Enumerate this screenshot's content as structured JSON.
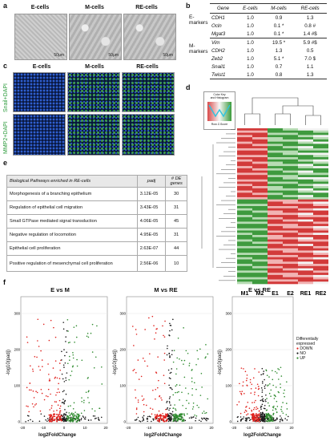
{
  "panels": {
    "a": {
      "label": "a",
      "captions": [
        "E-cells",
        "M-cells",
        "RE-cells"
      ],
      "scalebars": [
        "50μm",
        "50μm",
        "50μm"
      ]
    },
    "b": {
      "label": "b",
      "headers": [
        "Gene",
        "E-cells",
        "M-cells",
        "RE-cells"
      ],
      "groups": [
        {
          "name": "E-\nmarkers",
          "rows": [
            {
              "gene": "CDH1",
              "e": "1.0",
              "m": "0.9",
              "re": "1.3"
            },
            {
              "gene": "Ocln",
              "e": "1.0",
              "m": "0.1 *",
              "re": "0.8 #"
            },
            {
              "gene": "Mgat3",
              "e": "1.0",
              "m": "0.1 *",
              "re": "1.4 #$"
            }
          ]
        },
        {
          "name": "M-\nmarkers",
          "rows": [
            {
              "gene": "Vim",
              "e": "1.0",
              "m": "19.5 *",
              "re": "5.9 #$"
            },
            {
              "gene": "CDH2",
              "e": "1.0",
              "m": "1.3",
              "re": "0.5"
            },
            {
              "gene": "Zeb2",
              "e": "1.0",
              "m": "5.1 *",
              "re": "7.0 $"
            },
            {
              "gene": "Snail1",
              "e": "1.0",
              "m": "0.7",
              "re": "1.1"
            },
            {
              "gene": "Twist1",
              "e": "1.0",
              "m": "0.8",
              "re": "1.3"
            }
          ]
        }
      ]
    },
    "c": {
      "label": "c",
      "captions": [
        "E-cells",
        "M-cells",
        "RE-cells"
      ],
      "row_labels": [
        "Snail+DAPI",
        "MMP2+DAPI"
      ]
    },
    "d": {
      "label": "d",
      "key_title": "Color Key\nand Histogram",
      "key_xlabel": "Row Z-Score",
      "columns": [
        "M1",
        "M2",
        "E1",
        "E2",
        "RE1",
        "RE2"
      ]
    },
    "e": {
      "label": "e",
      "headers": [
        "Biological Pathways enriched in RE-cells",
        "padj",
        "# DE\ngenes"
      ],
      "rows": [
        {
          "pathway": "Morphogenesis of a branching epithelium",
          "padj": "3.12E-05",
          "n": "30"
        },
        {
          "pathway": "Regulation of epithelial cell migration",
          "padj": "3.43E-05",
          "n": "31"
        },
        {
          "pathway": "Small GTPase mediated signal transduction",
          "padj": "4.06E-05",
          "n": "45"
        },
        {
          "pathway": "Negative regulation of locomotion",
          "padj": "4.95E-05",
          "n": "31"
        },
        {
          "pathway": "Epithelial cell proliferation",
          "padj": "2.63E-07",
          "n": "44"
        },
        {
          "pathway": "Positive regulation of mesenchymal cell proliferation",
          "padj": "2.56E-06",
          "n": "10"
        }
      ]
    },
    "f": {
      "label": "f",
      "titles": [
        "E vs M",
        "M vs RE",
        "E vs RE"
      ],
      "xlabel": "log2FoldChange",
      "ylabel": "-log10(padj)",
      "legend_title": "Differentially\nexpressed",
      "legend_items": [
        "DOWN",
        "NO",
        "UP"
      ],
      "yticks": [
        "0",
        "100",
        "200",
        "300"
      ],
      "xticks": [
        "-20",
        "-10",
        "0",
        "10",
        "20"
      ],
      "colors": {
        "down": "#e0201c",
        "no": "#1a1a1a",
        "up": "#2e8b2e"
      }
    }
  },
  "chart_data": [
    {
      "type": "heatmap",
      "columns": [
        "M1",
        "M2",
        "E1",
        "E2",
        "RE1",
        "RE2"
      ]
    },
    {
      "type": "scatter",
      "title": "E vs M",
      "xlabel": "log2FoldChange",
      "ylabel": "-log10(padj)",
      "series": [
        {
          "name": "DOWN"
        },
        {
          "name": "NO"
        },
        {
          "name": "UP"
        }
      ]
    },
    {
      "type": "scatter",
      "title": "M vs RE",
      "xlabel": "log2FoldChange",
      "ylabel": "-log10(padj)",
      "series": [
        {
          "name": "DOWN"
        },
        {
          "name": "NO"
        },
        {
          "name": "UP"
        }
      ]
    },
    {
      "type": "scatter",
      "title": "E vs RE",
      "xlabel": "log2FoldChange",
      "ylabel": "-log10(padj)",
      "series": [
        {
          "name": "DOWN"
        },
        {
          "name": "NO"
        },
        {
          "name": "UP"
        }
      ]
    }
  ]
}
